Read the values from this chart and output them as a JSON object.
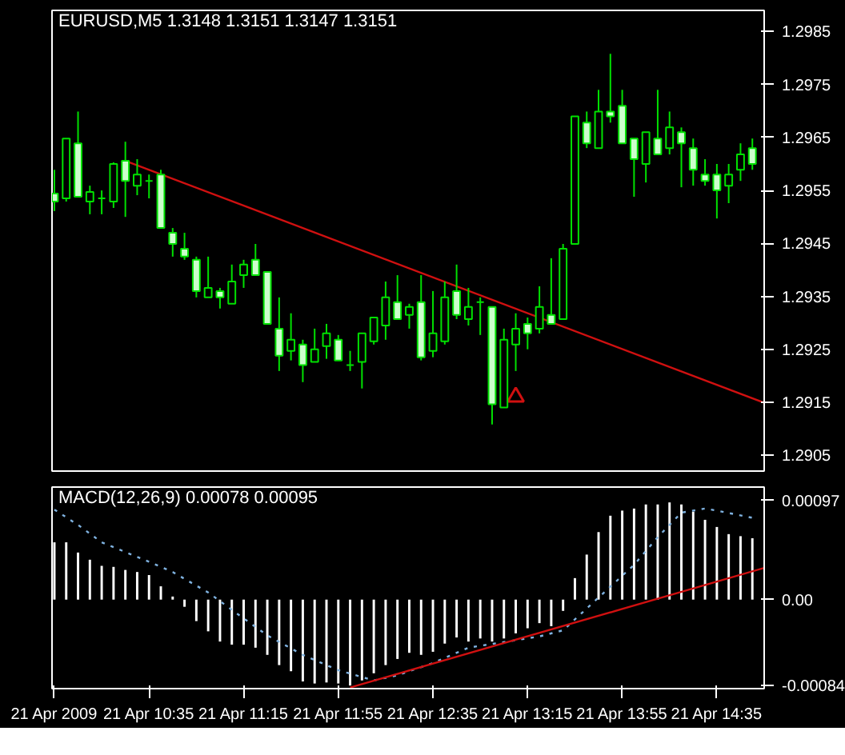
{
  "chart_data": [
    {
      "type": "candlestick",
      "title": "EURUSD,M5  1.3148 1.3151 1.3147 1.3151",
      "tick_labels": "y",
      "x": [
        "2009-04-21T09:55",
        "2009-04-21T10:00",
        "2009-04-21T10:05",
        "2009-04-21T10:10",
        "2009-04-21T10:15",
        "2009-04-21T10:20",
        "2009-04-21T10:25",
        "2009-04-21T10:30",
        "2009-04-21T10:35",
        "2009-04-21T10:40",
        "2009-04-21T10:45",
        "2009-04-21T10:50",
        "2009-04-21T10:55",
        "2009-04-21T11:00",
        "2009-04-21T11:05",
        "2009-04-21T11:10",
        "2009-04-21T11:15",
        "2009-04-21T11:20",
        "2009-04-21T11:25",
        "2009-04-21T11:30",
        "2009-04-21T11:35",
        "2009-04-21T11:40",
        "2009-04-21T11:45",
        "2009-04-21T11:50",
        "2009-04-21T11:55",
        "2009-04-21T12:00",
        "2009-04-21T12:05",
        "2009-04-21T12:10",
        "2009-04-21T12:15",
        "2009-04-21T12:20",
        "2009-04-21T12:25",
        "2009-04-21T12:30",
        "2009-04-21T12:35",
        "2009-04-21T12:40",
        "2009-04-21T12:45",
        "2009-04-21T12:50",
        "2009-04-21T12:55",
        "2009-04-21T13:00",
        "2009-04-21T13:05",
        "2009-04-21T13:10",
        "2009-04-21T13:15",
        "2009-04-21T13:20",
        "2009-04-21T13:25",
        "2009-04-21T13:30",
        "2009-04-21T13:35",
        "2009-04-21T13:40",
        "2009-04-21T13:45",
        "2009-04-21T13:50",
        "2009-04-21T13:55",
        "2009-04-21T14:00",
        "2009-04-21T14:05",
        "2009-04-21T14:10",
        "2009-04-21T14:15",
        "2009-04-21T14:20",
        "2009-04-21T14:25",
        "2009-04-21T14:30",
        "2009-04-21T14:35",
        "2009-04-21T14:40",
        "2009-04-21T14:45",
        "2009-04-21T14:50"
      ],
      "xlim": [
        "2009-04-21T09:54",
        "2009-04-21T14:55"
      ],
      "ylim": [
        1.2902,
        1.2989
      ],
      "yticks": [
        1.2905,
        1.2915,
        1.2925,
        1.2935,
        1.2945,
        1.2955,
        1.2965,
        1.2975,
        1.2985
      ],
      "series": [
        {
          "type": "line",
          "x": [
            "2009-04-21T10:25",
            "2009-04-21T14:55"
          ],
          "values": [
            1.29606,
            1.29149
          ],
          "color": "#d01010"
        },
        {
          "type": "scatter",
          "x": [
            "2009-04-21T13:10"
          ],
          "values": [
            1.2916
          ],
          "color": "#d01010",
          "marker": "triangle"
        },
        {
          "color": "#00e000",
          "ohlc": [
            [
              1.29544,
              1.29589,
              1.29511,
              1.29529
            ],
            [
              1.29535,
              1.29648,
              1.29529,
              1.29648
            ],
            [
              1.29639,
              1.29699,
              1.29538,
              1.29538
            ],
            [
              1.29529,
              1.29559,
              1.29505,
              1.29547
            ],
            [
              1.29535,
              1.2955,
              1.29505,
              1.29535
            ],
            [
              1.29529,
              1.29603,
              1.29517,
              1.296
            ],
            [
              1.29606,
              1.29642,
              1.295,
              1.29568
            ],
            [
              1.29559,
              1.29609,
              1.29541,
              1.2958
            ],
            [
              1.29568,
              1.2958,
              1.29535,
              1.29568
            ],
            [
              1.2958,
              1.29589,
              1.29479,
              1.29479
            ],
            [
              1.2947,
              1.29479,
              1.29425,
              1.29449
            ],
            [
              1.2944,
              1.2947,
              1.29419,
              1.29425
            ],
            [
              1.29419,
              1.29425,
              1.29348,
              1.2936
            ],
            [
              1.29348,
              1.29425,
              1.29348,
              1.29366
            ],
            [
              1.2936,
              1.29366,
              1.29327,
              1.29348
            ],
            [
              1.29336,
              1.2941,
              1.29336,
              1.29378
            ],
            [
              1.2939,
              1.29419,
              1.29366,
              1.2941
            ],
            [
              1.29419,
              1.29449,
              1.2939,
              1.2939
            ],
            [
              1.29396,
              1.29396,
              1.29298,
              1.29298
            ],
            [
              1.29289,
              1.29348,
              1.29209,
              1.29238
            ],
            [
              1.29247,
              1.29318,
              1.29229,
              1.29268
            ],
            [
              1.29259,
              1.29268,
              1.29188,
              1.2922
            ],
            [
              1.29226,
              1.29289,
              1.29226,
              1.2925
            ],
            [
              1.29256,
              1.29298,
              1.29232,
              1.2928
            ],
            [
              1.29268,
              1.29277,
              1.29229,
              1.29229
            ],
            [
              1.2922,
              1.29247,
              1.29209,
              1.2922
            ],
            [
              1.29226,
              1.2928,
              1.29176,
              1.2928
            ],
            [
              1.29265,
              1.2931,
              1.29259,
              1.2931
            ],
            [
              1.29295,
              1.29378,
              1.29268,
              1.29348
            ],
            [
              1.29339,
              1.2939,
              1.29307,
              1.29307
            ],
            [
              1.29315,
              1.29336,
              1.29289,
              1.2933
            ],
            [
              1.29339,
              1.2939,
              1.29229,
              1.29235
            ],
            [
              1.29247,
              1.2936,
              1.29235,
              1.2928
            ],
            [
              1.29265,
              1.29378,
              1.29259,
              1.29348
            ],
            [
              1.2936,
              1.2941,
              1.29307,
              1.29315
            ],
            [
              1.29307,
              1.29366,
              1.29295,
              1.2933
            ],
            [
              1.29339,
              1.29348,
              1.29277,
              1.29339
            ],
            [
              1.2933,
              1.2933,
              1.29108,
              1.29146
            ],
            [
              1.2914,
              1.29289,
              1.2914,
              1.29268
            ],
            [
              1.29259,
              1.29318,
              1.29209,
              1.29289
            ],
            [
              1.29298,
              1.2931,
              1.2925,
              1.2928
            ],
            [
              1.29289,
              1.29369,
              1.2928,
              1.2933
            ],
            [
              1.29315,
              1.29422,
              1.29298,
              1.29298
            ],
            [
              1.29307,
              1.29449,
              1.29307,
              1.2944
            ],
            [
              1.29449,
              1.2969,
              1.29449,
              1.2969
            ],
            [
              1.29678,
              1.29699,
              1.2963,
              1.29639
            ],
            [
              1.2963,
              1.2974,
              1.2963,
              1.29699
            ],
            [
              1.29699,
              1.29808,
              1.29678,
              1.2969
            ],
            [
              1.2971,
              1.2974,
              1.29639,
              1.29639
            ],
            [
              1.29648,
              1.29648,
              1.29538,
              1.29609
            ],
            [
              1.296,
              1.2966,
              1.29565,
              1.2966
            ],
            [
              1.29648,
              1.2974,
              1.29618,
              1.29618
            ],
            [
              1.2963,
              1.29699,
              1.29618,
              1.29669
            ],
            [
              1.2966,
              1.29669,
              1.29556,
              1.29639
            ],
            [
              1.2963,
              1.29648,
              1.29559,
              1.29589
            ],
            [
              1.2958,
              1.29609,
              1.29559,
              1.29568
            ],
            [
              1.2958,
              1.296,
              1.29497,
              1.2955
            ],
            [
              1.29559,
              1.296,
              1.29526,
              1.2958
            ],
            [
              1.29589,
              1.29639,
              1.29568,
              1.29618
            ],
            [
              1.2963,
              1.29648,
              1.29589,
              1.296
            ]
          ],
          "colors": [
            "#ccffcc",
            "#000000",
            "#ccffcc",
            "#000000",
            "#00e000",
            "#000000",
            "#ccffcc",
            "#000000",
            "#00e000",
            "#ccffcc",
            "#ccffcc",
            "#ccffcc",
            "#ccffcc",
            "#000000",
            "#ccffcc",
            "#000000",
            "#000000",
            "#ccffcc",
            "#ccffcc",
            "#ccffcc",
            "#000000",
            "#ccffcc",
            "#000000",
            "#000000",
            "#ccffcc",
            "#00e000",
            "#000000",
            "#000000",
            "#000000",
            "#ccffcc",
            "#000000",
            "#ccffcc",
            "#000000",
            "#000000",
            "#ccffcc",
            "#000000",
            "#00e000",
            "#ccffcc",
            "#000000",
            "#000000",
            "#ccffcc",
            "#000000",
            "#ccffcc",
            "#000000",
            "#000000",
            "#ccffcc",
            "#000000",
            "#ccffcc",
            "#ccffcc",
            "#ccffcc",
            "#000000",
            "#ccffcc",
            "#000000",
            "#ccffcc",
            "#ccffcc",
            "#ccffcc",
            "#ccffcc",
            "#000000",
            "#000000",
            "#ccffcc"
          ]
        }
      ]
    },
    {
      "type": "bar",
      "title": "MACD(12,26,9) 0.00078 0.00095",
      "x": [
        "2009-04-21T09:55",
        "2009-04-21T10:00",
        "2009-04-21T10:05",
        "2009-04-21T10:10",
        "2009-04-21T10:15",
        "2009-04-21T10:20",
        "2009-04-21T10:25",
        "2009-04-21T10:30",
        "2009-04-21T10:35",
        "2009-04-21T10:40",
        "2009-04-21T10:45",
        "2009-04-21T10:50",
        "2009-04-21T10:55",
        "2009-04-21T11:00",
        "2009-04-21T11:05",
        "2009-04-21T11:10",
        "2009-04-21T11:15",
        "2009-04-21T11:20",
        "2009-04-21T11:25",
        "2009-04-21T11:30",
        "2009-04-21T11:35",
        "2009-04-21T11:40",
        "2009-04-21T11:45",
        "2009-04-21T11:50",
        "2009-04-21T11:55",
        "2009-04-21T12:00",
        "2009-04-21T12:05",
        "2009-04-21T12:10",
        "2009-04-21T12:15",
        "2009-04-21T12:20",
        "2009-04-21T12:25",
        "2009-04-21T12:30",
        "2009-04-21T12:35",
        "2009-04-21T12:40",
        "2009-04-21T12:45",
        "2009-04-21T12:50",
        "2009-04-21T12:55",
        "2009-04-21T13:00",
        "2009-04-21T13:05",
        "2009-04-21T13:10",
        "2009-04-21T13:15",
        "2009-04-21T13:20",
        "2009-04-21T13:25",
        "2009-04-21T13:30",
        "2009-04-21T13:35",
        "2009-04-21T13:40",
        "2009-04-21T13:45",
        "2009-04-21T13:50",
        "2009-04-21T13:55",
        "2009-04-21T14:00",
        "2009-04-21T14:05",
        "2009-04-21T14:10",
        "2009-04-21T14:15",
        "2009-04-21T14:20",
        "2009-04-21T14:25",
        "2009-04-21T14:30",
        "2009-04-21T14:35",
        "2009-04-21T14:40",
        "2009-04-21T14:45",
        "2009-04-21T14:50"
      ],
      "xlim": [
        "2009-04-21T09:54",
        "2009-04-21T14:55"
      ],
      "xticks": [
        {
          "value": "2009-04-21T09:55",
          "label": "21 Apr 2009"
        },
        {
          "value": "2009-04-21T10:35",
          "label": "21 Apr 10:35"
        },
        {
          "value": "2009-04-21T11:15",
          "label": "21 Apr 11:15"
        },
        {
          "value": "2009-04-21T11:55",
          "label": "21 Apr 11:55"
        },
        {
          "value": "2009-04-21T12:35",
          "label": "21 Apr 12:35"
        },
        {
          "value": "2009-04-21T13:15",
          "label": "21 Apr 13:15"
        },
        {
          "value": "2009-04-21T13:55",
          "label": "21 Apr 13:55"
        },
        {
          "value": "2009-04-21T14:35",
          "label": "21 Apr 14:35"
        }
      ],
      "ylim": [
        -0.00087,
        0.0011
      ],
      "yticks": [
        -0.00084,
        {
          "value": 0,
          "label": "0.00"
        },
        0.00097
      ],
      "series": [
        {
          "color": "#ffffff",
          "values": [
            0.00056,
            0.00056,
            0.00046,
            0.00039,
            0.00033,
            0.00032,
            0.00029,
            0.00027,
            0.00024,
            0.00013,
            3e-05,
            -7e-05,
            -0.00021,
            -0.00031,
            -0.00041,
            -0.00044,
            -0.00044,
            -0.00047,
            -0.00054,
            -0.00064,
            -0.0007,
            -0.0008,
            -0.00082,
            -0.00081,
            -0.00082,
            -0.00084,
            -0.00079,
            -0.00072,
            -0.00064,
            -0.00058,
            -0.00052,
            -0.00054,
            -0.00051,
            -0.00043,
            -0.00037,
            -0.00041,
            -0.00038,
            -0.00041,
            -0.00038,
            -0.00033,
            -0.00028,
            -0.00023,
            -0.00026,
            -0.00011,
            0.00021,
            0.00044,
            0.00066,
            0.00082,
            0.00087,
            0.00089,
            0.00093,
            0.00093,
            0.00095,
            0.00093,
            0.00086,
            0.00078,
            0.00071,
            0.00064,
            0.00062,
            0.0006
          ]
        },
        {
          "type": "line",
          "color": "#7fb2e0",
          "line_style": "dotted",
          "x": [
            "2009-04-21T09:55",
            "2009-04-21T10:05",
            "2009-04-21T10:15",
            "2009-04-21T10:35",
            "2009-04-21T10:45",
            "2009-04-21T11:00",
            "2009-04-21T11:10",
            "2009-04-21T11:25",
            "2009-04-21T11:40",
            "2009-04-21T11:55",
            "2009-04-21T12:10",
            "2009-04-21T12:20",
            "2009-04-21T12:35",
            "2009-04-21T12:50",
            "2009-04-21T13:20",
            "2009-04-21T13:30",
            "2009-04-21T13:45",
            "2009-04-21T14:00",
            "2009-04-21T14:10",
            "2009-04-21T14:20",
            "2009-04-21T14:30",
            "2009-04-21T14:35",
            "2009-04-21T14:50"
          ],
          "values": [
            0.00088,
            0.00073,
            0.00056,
            0.00037,
            0.00027,
            7e-05,
            -0.0001,
            -0.00035,
            -0.00054,
            -0.00069,
            -0.00079,
            -0.00074,
            -0.00062,
            -0.00047,
            -0.00036,
            -0.0003,
            2e-05,
            0.00034,
            0.00061,
            0.00085,
            0.00089,
            0.00087,
            0.0008
          ]
        },
        {
          "type": "line",
          "color": "#d01010",
          "x": [
            "2009-04-21T12:00",
            "2009-04-21T14:55"
          ],
          "values": [
            -0.00086,
            0.00031
          ]
        }
      ]
    }
  ]
}
